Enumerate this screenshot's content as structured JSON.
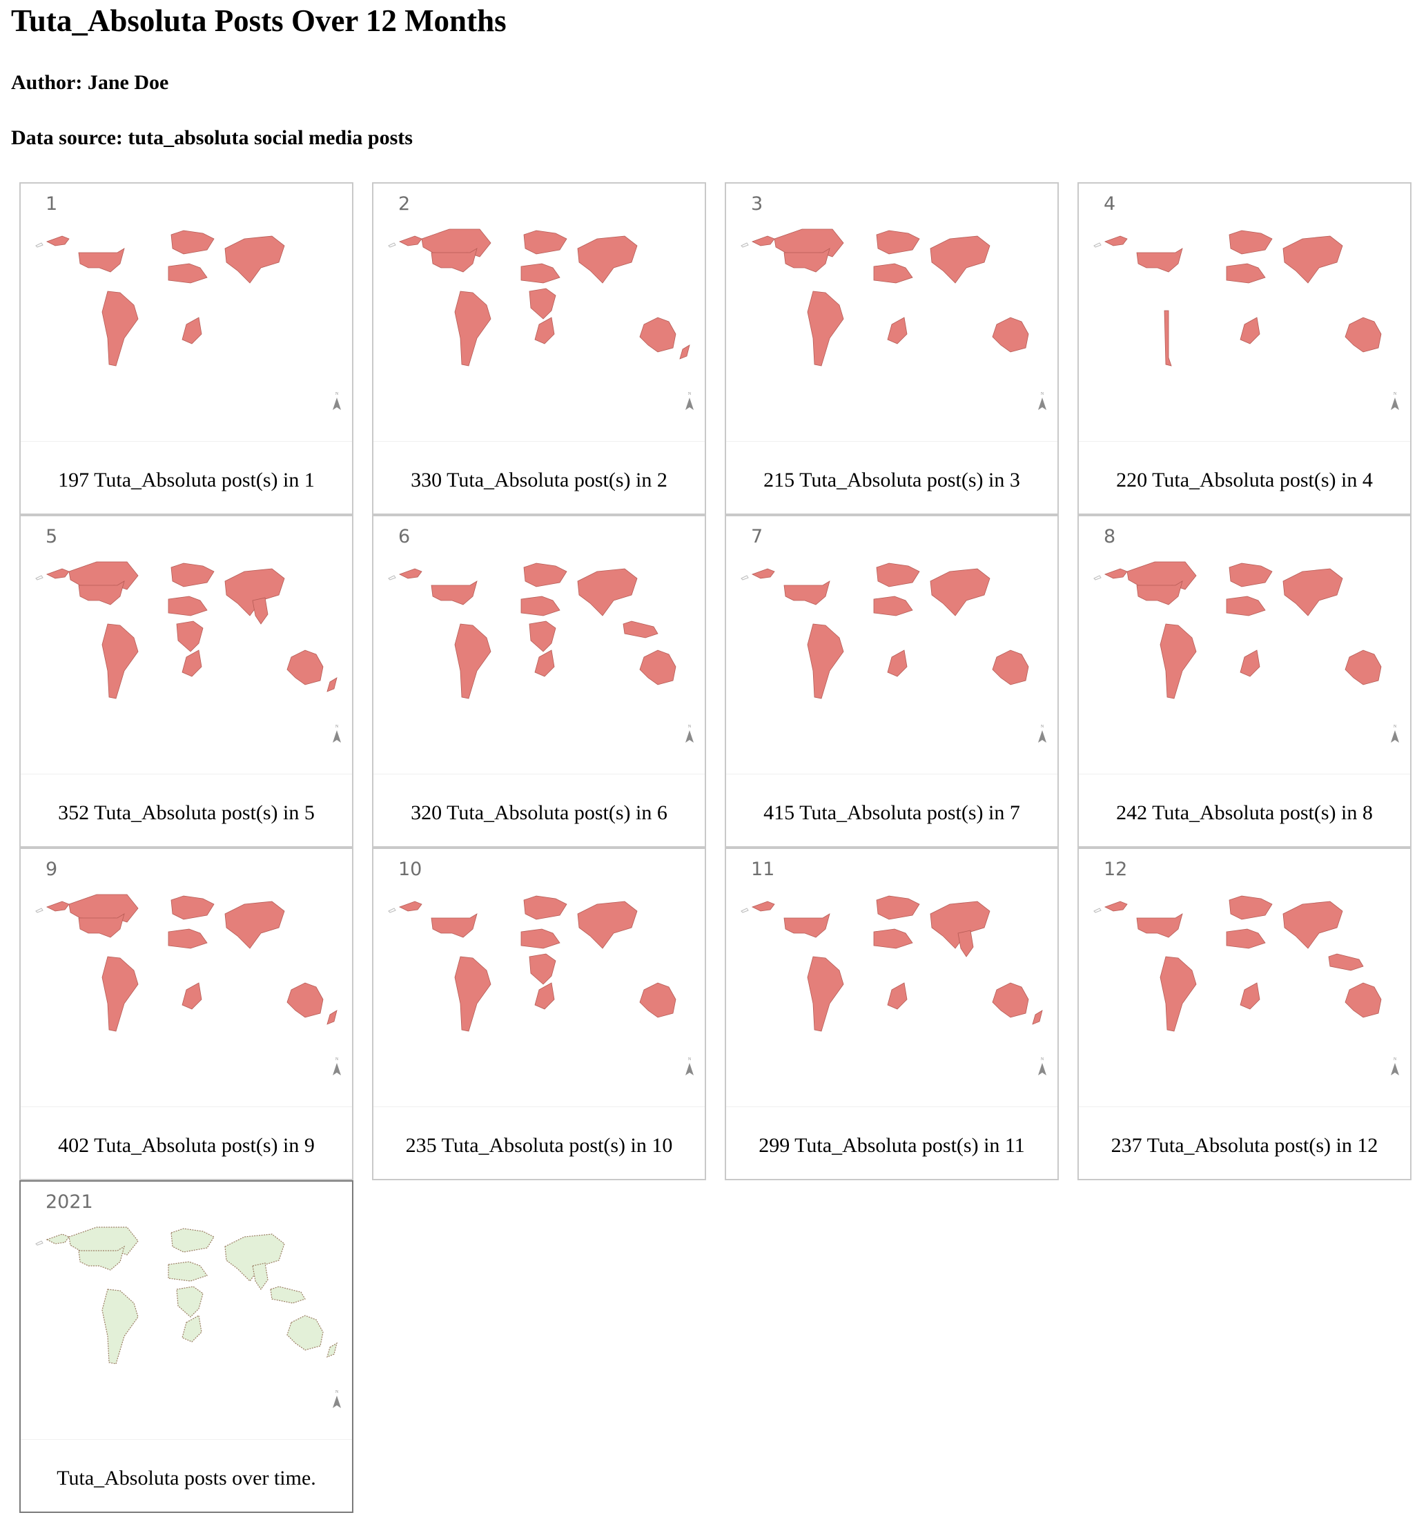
{
  "header": {
    "title": "Tuta_Absoluta Posts Over 12 Months",
    "author": "Author: Jane Doe",
    "source": "Data source: tuta_absoluta social media posts"
  },
  "colors": {
    "fill": "#e47f7a",
    "edge": "#b65b55",
    "summary_fill": "#e3f0d8",
    "summary_edge": "#9a7d62"
  },
  "panels": [
    {
      "label": "1",
      "caption": "197 Tuta_Absoluta post(s) in 1",
      "posts": 197,
      "month": 1,
      "regions": [
        "alaska",
        "usa",
        "south-america",
        "africa-north",
        "europe",
        "asia-east",
        "south-africa"
      ]
    },
    {
      "label": "2",
      "caption": "330 Tuta_Absoluta post(s) in 2",
      "posts": 330,
      "month": 2,
      "regions": [
        "alaska",
        "canada",
        "usa",
        "south-america",
        "africa-north",
        "africa-central",
        "europe",
        "asia-east",
        "south-africa",
        "australia",
        "new-zealand"
      ]
    },
    {
      "label": "3",
      "caption": "215 Tuta_Absoluta post(s) in 3",
      "posts": 215,
      "month": 3,
      "regions": [
        "alaska",
        "canada",
        "usa",
        "south-america",
        "africa-north",
        "europe",
        "asia-east",
        "south-africa",
        "australia"
      ]
    },
    {
      "label": "4",
      "caption": "220 Tuta_Absoluta post(s) in 4",
      "posts": 220,
      "month": 4,
      "regions": [
        "alaska",
        "usa",
        "chile",
        "africa-north",
        "europe",
        "asia-east",
        "south-africa",
        "australia"
      ]
    },
    {
      "label": "5",
      "caption": "352 Tuta_Absoluta post(s) in 5",
      "posts": 352,
      "month": 5,
      "regions": [
        "alaska",
        "canada",
        "usa",
        "south-america",
        "africa-north",
        "africa-central",
        "europe",
        "asia-east",
        "asia-south",
        "south-africa",
        "australia",
        "new-zealand"
      ]
    },
    {
      "label": "6",
      "caption": "320 Tuta_Absoluta post(s) in 6",
      "posts": 320,
      "month": 6,
      "regions": [
        "alaska",
        "usa",
        "south-america",
        "africa-north",
        "africa-central",
        "europe",
        "asia-east",
        "indonesia",
        "south-africa",
        "australia"
      ]
    },
    {
      "label": "7",
      "caption": "415 Tuta_Absoluta post(s) in 7",
      "posts": 415,
      "month": 7,
      "regions": [
        "alaska",
        "usa",
        "south-america",
        "africa-north",
        "europe",
        "asia-east",
        "south-africa",
        "australia"
      ]
    },
    {
      "label": "8",
      "caption": "242 Tuta_Absoluta post(s) in 8",
      "posts": 242,
      "month": 8,
      "regions": [
        "alaska",
        "canada",
        "usa",
        "south-america",
        "africa-north",
        "europe",
        "asia-east",
        "south-africa",
        "australia"
      ]
    },
    {
      "label": "9",
      "caption": "402 Tuta_Absoluta post(s) in 9",
      "posts": 402,
      "month": 9,
      "regions": [
        "alaska",
        "canada",
        "usa",
        "south-america",
        "africa-north",
        "europe",
        "asia-east",
        "south-africa",
        "australia",
        "new-zealand"
      ]
    },
    {
      "label": "10",
      "caption": "235 Tuta_Absoluta post(s) in 10",
      "posts": 235,
      "month": 10,
      "regions": [
        "alaska",
        "usa",
        "south-america",
        "africa-north",
        "africa-central",
        "europe",
        "asia-east",
        "south-africa",
        "australia"
      ]
    },
    {
      "label": "11",
      "caption": "299 Tuta_Absoluta post(s) in 11",
      "posts": 299,
      "month": 11,
      "regions": [
        "alaska",
        "usa",
        "south-america",
        "africa-north",
        "europe",
        "asia-east",
        "asia-south",
        "south-africa",
        "australia",
        "new-zealand"
      ]
    },
    {
      "label": "12",
      "caption": "237 Tuta_Absoluta post(s) in 12",
      "posts": 237,
      "month": 12,
      "regions": [
        "alaska",
        "usa",
        "south-america",
        "africa-north",
        "europe",
        "asia-east",
        "indonesia",
        "south-africa",
        "australia"
      ]
    },
    {
      "label": "2021",
      "caption": "Tuta_Absoluta posts over time.",
      "summary": true,
      "regions": [
        "alaska",
        "canada",
        "usa",
        "south-america",
        "africa-north",
        "africa-central",
        "europe",
        "asia-east",
        "asia-south",
        "indonesia",
        "south-africa",
        "australia",
        "new-zealand"
      ]
    }
  ]
}
